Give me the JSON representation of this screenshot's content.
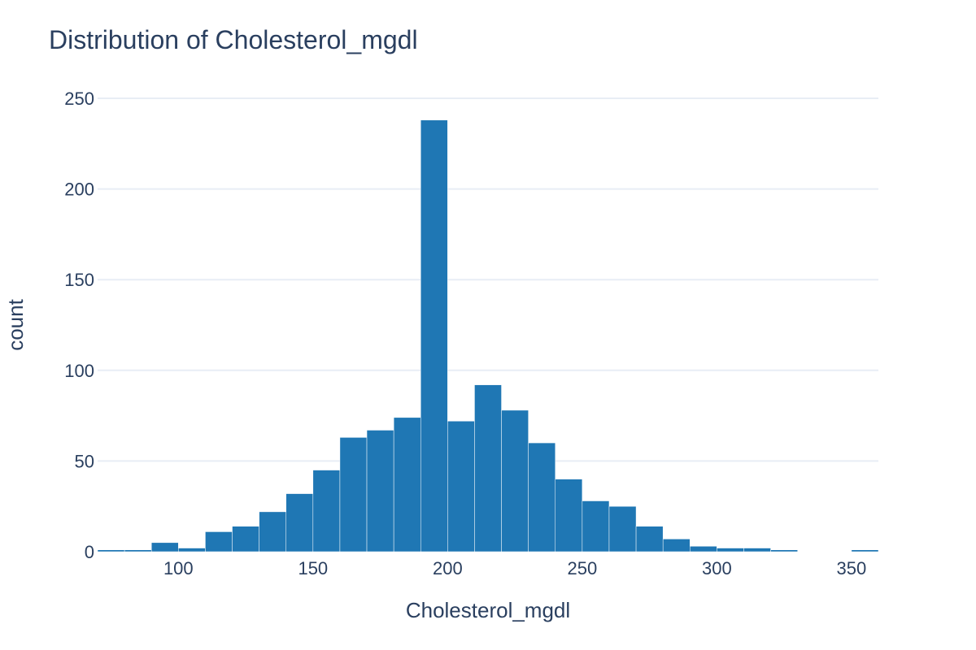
{
  "chart_data": {
    "type": "bar",
    "title": "Distribution of Cholesterol_mgdl",
    "xlabel": "Cholesterol_mgdl",
    "ylabel": "count",
    "xlim": [
      70,
      360
    ],
    "ylim": [
      0,
      250
    ],
    "x_ticks": [
      100,
      150,
      200,
      250,
      300,
      350
    ],
    "y_ticks": [
      0,
      50,
      100,
      150,
      200,
      250
    ],
    "bin_width": 10,
    "grid": true,
    "color": "#1f77b4",
    "bins": [
      {
        "start": 70,
        "count": 1
      },
      {
        "start": 80,
        "count": 1
      },
      {
        "start": 90,
        "count": 5
      },
      {
        "start": 100,
        "count": 2
      },
      {
        "start": 110,
        "count": 11
      },
      {
        "start": 120,
        "count": 14
      },
      {
        "start": 130,
        "count": 22
      },
      {
        "start": 140,
        "count": 32
      },
      {
        "start": 150,
        "count": 45
      },
      {
        "start": 160,
        "count": 63
      },
      {
        "start": 170,
        "count": 67
      },
      {
        "start": 180,
        "count": 74
      },
      {
        "start": 190,
        "count": 238
      },
      {
        "start": 200,
        "count": 72
      },
      {
        "start": 210,
        "count": 92
      },
      {
        "start": 220,
        "count": 78
      },
      {
        "start": 230,
        "count": 60
      },
      {
        "start": 240,
        "count": 40
      },
      {
        "start": 250,
        "count": 28
      },
      {
        "start": 260,
        "count": 25
      },
      {
        "start": 270,
        "count": 14
      },
      {
        "start": 280,
        "count": 7
      },
      {
        "start": 290,
        "count": 3
      },
      {
        "start": 300,
        "count": 2
      },
      {
        "start": 310,
        "count": 2
      },
      {
        "start": 320,
        "count": 1
      },
      {
        "start": 330,
        "count": 0
      },
      {
        "start": 340,
        "count": 0
      },
      {
        "start": 350,
        "count": 1
      }
    ]
  }
}
